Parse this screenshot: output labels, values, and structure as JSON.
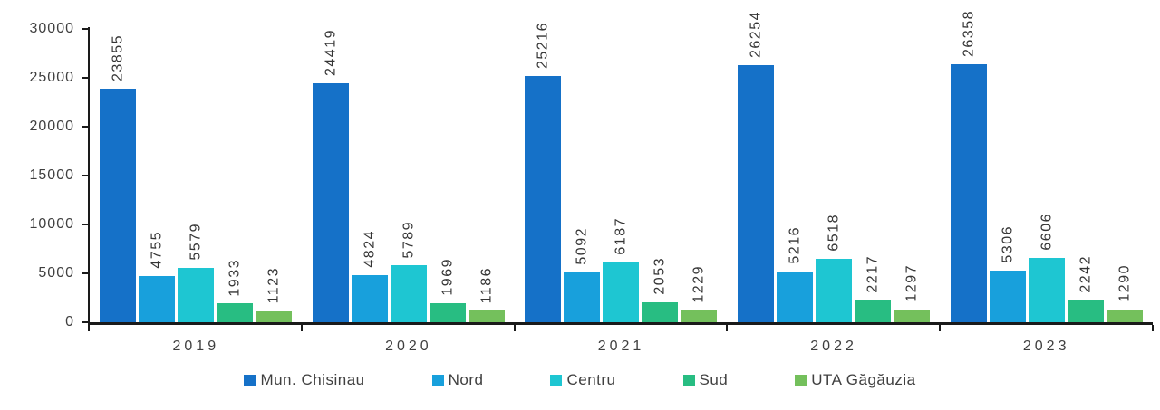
{
  "chart_data": {
    "type": "bar",
    "title": "",
    "xlabel": "",
    "ylabel": "",
    "categories": [
      "2019",
      "2020",
      "2021",
      "2022",
      "2023"
    ],
    "series": [
      {
        "name": "Mun. Chisinau",
        "color": "#1571c8",
        "values": [
          23855,
          24419,
          25216,
          26254,
          26358
        ]
      },
      {
        "name": "Nord",
        "color": "#18a0dc",
        "values": [
          4755,
          4824,
          5092,
          5216,
          5306
        ]
      },
      {
        "name": "Centru",
        "color": "#1ec6d2",
        "values": [
          5579,
          5789,
          6187,
          6518,
          6606
        ]
      },
      {
        "name": "Sud",
        "color": "#28bd82",
        "values": [
          1933,
          1969,
          2053,
          2217,
          2242
        ]
      },
      {
        "name": "UTA Găgăuzia",
        "color": "#74c05c",
        "values": [
          1123,
          1186,
          1229,
          1297,
          1290
        ]
      }
    ],
    "y_ticks": [
      0,
      5000,
      10000,
      15000,
      20000,
      25000,
      30000
    ],
    "ylim": [
      0,
      30000
    ],
    "grid": false,
    "legend_position": "bottom",
    "value_labels": "rotated-90-above-bars",
    "axis_color": "#1a1a1a",
    "label_text_color": "#3f3f3f"
  }
}
